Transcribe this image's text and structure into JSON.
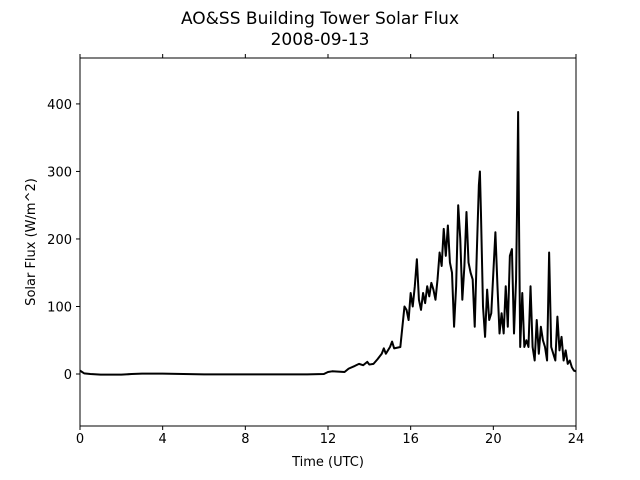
{
  "chart_data": {
    "type": "line",
    "title": "AO&SS Building Tower Solar Flux",
    "subtitle": "2008-09-13",
    "x_label": "Time (UTC)",
    "y_label": "Solar Flux (W/m^2)",
    "xlim": [
      0,
      24
    ],
    "xticks": [
      0,
      4,
      8,
      12,
      16,
      20,
      24
    ],
    "ylim": [
      -77,
      468
    ],
    "yticks": [
      0,
      100,
      200,
      300,
      400
    ],
    "series": [
      {
        "color": "#000000",
        "x": [
          0,
          0.2,
          0.5,
          1,
          2,
          2.5,
          3,
          4,
          5,
          6,
          8,
          10,
          11,
          11.8,
          12,
          12.2,
          12.8,
          13,
          13.3,
          13.5,
          13.7,
          13.9,
          14,
          14.2,
          14.4,
          14.6,
          14.7,
          14.8,
          15,
          15.1,
          15.2,
          15.5,
          15.6,
          15.7,
          15.8,
          15.9,
          16,
          16.1,
          16.2,
          16.3,
          16.4,
          16.5,
          16.6,
          16.7,
          16.8,
          16.9,
          17,
          17.1,
          17.2,
          17.3,
          17.4,
          17.5,
          17.6,
          17.7,
          17.8,
          17.9,
          18,
          18.1,
          18.2,
          18.3,
          18.4,
          18.5,
          18.6,
          18.7,
          18.8,
          18.9,
          19,
          19.1,
          19.2,
          19.3,
          19.35,
          19.4,
          19.5,
          19.6,
          19.7,
          19.8,
          19.9,
          20,
          20.1,
          20.2,
          20.3,
          20.4,
          20.5,
          20.6,
          20.7,
          20.8,
          20.9,
          21,
          21.1,
          21.15,
          21.2,
          21.25,
          21.3,
          21.4,
          21.5,
          21.6,
          21.7,
          21.8,
          21.9,
          22,
          22.1,
          22.2,
          22.3,
          22.4,
          22.5,
          22.6,
          22.7,
          22.8,
          22.9,
          23,
          23.1,
          23.2,
          23.3,
          23.4,
          23.5,
          23.6,
          23.7,
          23.8,
          23.9,
          24
        ],
        "values": [
          5,
          1,
          0,
          -1,
          -1,
          0,
          0.5,
          0.5,
          0,
          -0.5,
          -0.5,
          -0.5,
          -0.5,
          0,
          3,
          4,
          3,
          8,
          12,
          15,
          13,
          18,
          14,
          15,
          22,
          30,
          38,
          30,
          40,
          48,
          38,
          40,
          70,
          100,
          95,
          80,
          120,
          100,
          130,
          170,
          110,
          95,
          120,
          105,
          130,
          115,
          135,
          125,
          110,
          140,
          180,
          160,
          215,
          175,
          220,
          165,
          150,
          70,
          130,
          250,
          200,
          110,
          160,
          240,
          165,
          150,
          140,
          70,
          180,
          280,
          300,
          240,
          100,
          55,
          125,
          80,
          90,
          150,
          210,
          130,
          60,
          90,
          60,
          130,
          70,
          175,
          185,
          60,
          140,
          250,
          388,
          200,
          40,
          120,
          40,
          50,
          40,
          130,
          40,
          20,
          80,
          30,
          70,
          50,
          40,
          20,
          180,
          40,
          30,
          20,
          85,
          35,
          55,
          20,
          35,
          15,
          20,
          10,
          5,
          4
        ]
      }
    ]
  }
}
